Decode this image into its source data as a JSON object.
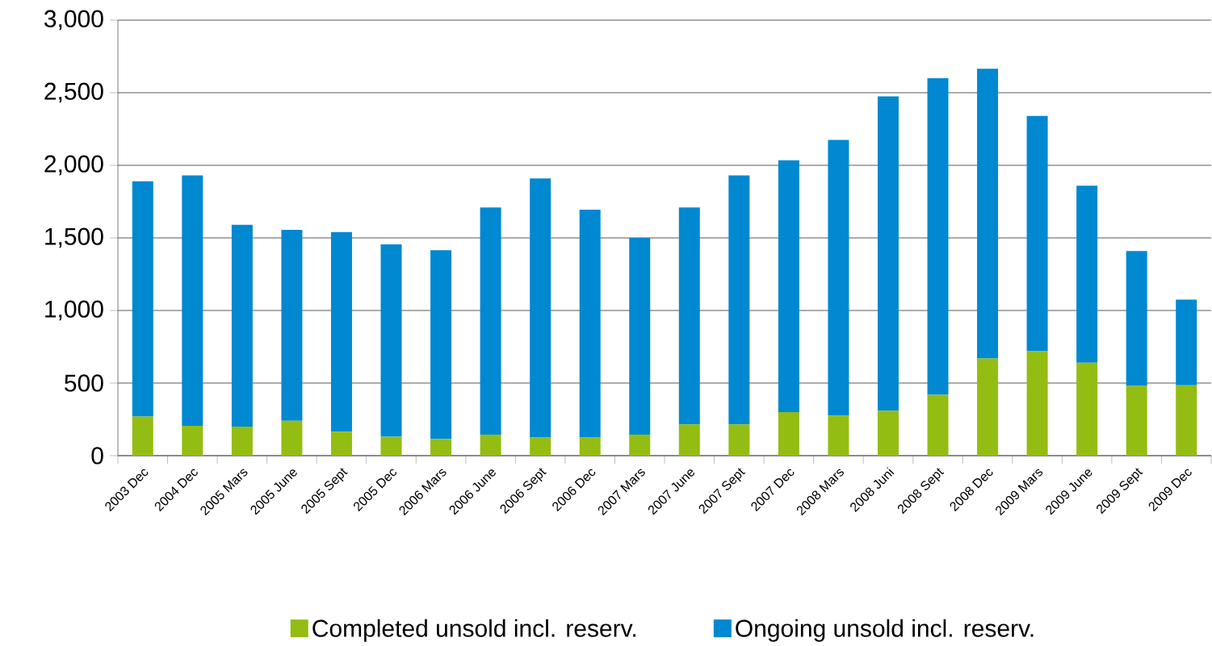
{
  "chart_data": {
    "type": "bar",
    "stacked": true,
    "categories": [
      "2003 Dec",
      "2004 Dec",
      "2005 Mars",
      "2005 June",
      "2005 Sept",
      "2005 Dec",
      "2006 Mars",
      "2006 June",
      "2006 Sept",
      "2006 Dec",
      "2007 Mars",
      "2007 June",
      "2007 Sept",
      "2007 Dec",
      "2008 Mars",
      "2008 Juni",
      "2008 Sept",
      "2008 Dec",
      "2009 Mars",
      "2009 June",
      "2009 Sept",
      "2009 Dec"
    ],
    "series": [
      {
        "name": "Completed unsold incl. reserv.",
        "color": "#93bd12",
        "values": [
          270,
          205,
          200,
          240,
          165,
          130,
          115,
          145,
          125,
          125,
          145,
          215,
          215,
          300,
          275,
          310,
          420,
          670,
          720,
          640,
          480,
          485
        ]
      },
      {
        "name": "Ongoing unsold incl. reserv.",
        "color": "#0088d1",
        "values": [
          1620,
          1725,
          1390,
          1315,
          1375,
          1325,
          1300,
          1565,
          1785,
          1570,
          1355,
          1495,
          1715,
          1735,
          1900,
          2165,
          2180,
          1995,
          1620,
          1220,
          930,
          590
        ]
      }
    ],
    "ylim": [
      0,
      3000
    ],
    "yticks": [
      {
        "value": 0,
        "label": "0"
      },
      {
        "value": 500,
        "label": "500"
      },
      {
        "value": 1000,
        "label": "1,000"
      },
      {
        "value": 1500,
        "label": "1,500"
      },
      {
        "value": 2000,
        "label": "2,000"
      },
      {
        "value": 2500,
        "label": "2,500"
      },
      {
        "value": 3000,
        "label": "3,000"
      }
    ],
    "grid": "y",
    "legend": "bottom"
  }
}
